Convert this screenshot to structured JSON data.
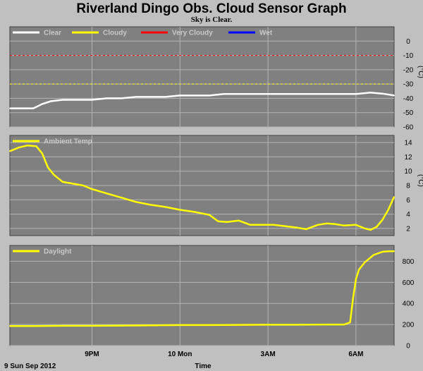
{
  "header": {
    "title": "Riverland Dingo Obs. Cloud Sensor Graph",
    "subtitle": "Sky is Clear."
  },
  "footer": {
    "date_label": "9 Sun Sep 2012",
    "x_axis_label": "Time"
  },
  "colors": {
    "page_bg": "#c0c0c0",
    "plot_bg": "#808080",
    "grid": "#b4b4b4",
    "clear": "#ffffff",
    "cloudy": "#ffff00",
    "very_cloudy": "#ff0000",
    "wet": "#0000ff"
  },
  "x_ticks": [
    {
      "hour": 21,
      "label": "9PM"
    },
    {
      "hour": 24,
      "label": "10 Mon"
    },
    {
      "hour": 27,
      "label": "3AM"
    },
    {
      "hour": 30,
      "label": "6AM"
    }
  ],
  "chart_data": [
    {
      "type": "line",
      "panel": "sky",
      "xunit": "hours since 00:00 Sun 9 Sep 2012",
      "xlim": [
        18.2,
        31.3
      ],
      "ylim": [
        -60,
        10
      ],
      "yticks": [
        0,
        -10,
        -20,
        -30,
        -40,
        -50,
        -60
      ],
      "ylabel": "(°C)",
      "legend": [
        "Clear",
        "Cloudy",
        "Very Cloudy",
        "Wet"
      ],
      "thresholds": [
        {
          "name": "Cloudy",
          "value": -30,
          "color": "#ffff00"
        },
        {
          "name": "Very Cloudy",
          "value": -10,
          "color": "#ff0000"
        }
      ],
      "series": [
        {
          "name": "Clear",
          "color": "#ffffff",
          "x": [
            18.2,
            18.6,
            19.0,
            19.3,
            19.6,
            20.0,
            20.5,
            21.0,
            21.5,
            22.0,
            22.5,
            23.0,
            23.5,
            24.0,
            24.5,
            25.0,
            25.5,
            26.0,
            26.5,
            27.0,
            27.5,
            28.0,
            28.5,
            29.0,
            29.5,
            30.0,
            30.5,
            31.0,
            31.3
          ],
          "y": [
            -47,
            -47,
            -47,
            -44,
            -42,
            -41,
            -41,
            -41,
            -40,
            -40,
            -39,
            -39,
            -39,
            -38,
            -38,
            -38,
            -37,
            -37,
            -37,
            -37,
            -37,
            -37,
            -37,
            -37,
            -37,
            -37,
            -36,
            -37,
            -38
          ]
        }
      ]
    },
    {
      "type": "line",
      "panel": "ambient",
      "xlim": [
        18.2,
        31.3
      ],
      "ylim": [
        1,
        15
      ],
      "yticks": [
        2,
        4,
        6,
        8,
        10,
        12,
        14
      ],
      "ylabel": "(°C)",
      "legend": [
        "Ambient Temp"
      ],
      "series": [
        {
          "name": "Ambient Temp",
          "color": "#ffff00",
          "x": [
            18.2,
            18.5,
            18.8,
            19.1,
            19.3,
            19.5,
            19.7,
            20.0,
            20.3,
            20.7,
            21.0,
            21.5,
            22.0,
            22.5,
            23.0,
            23.5,
            24.0,
            24.5,
            25.0,
            25.3,
            25.6,
            26.0,
            26.4,
            26.8,
            27.2,
            27.6,
            28.0,
            28.3,
            28.7,
            29.0,
            29.3,
            29.6,
            30.0,
            30.3,
            30.5,
            30.7,
            30.9,
            31.1,
            31.3
          ],
          "y": [
            12.8,
            13.3,
            13.6,
            13.5,
            12.5,
            10.5,
            9.5,
            8.5,
            8.3,
            8.0,
            7.5,
            6.9,
            6.3,
            5.7,
            5.3,
            5.0,
            4.6,
            4.3,
            3.9,
            3.0,
            2.9,
            3.1,
            2.5,
            2.5,
            2.5,
            2.3,
            2.1,
            1.9,
            2.5,
            2.7,
            2.6,
            2.4,
            2.5,
            2.0,
            1.8,
            2.2,
            3.2,
            4.6,
            6.4
          ]
        }
      ]
    },
    {
      "type": "line",
      "panel": "daylight",
      "xlim": [
        18.2,
        31.3
      ],
      "ylim": [
        0,
        950
      ],
      "yticks": [
        0,
        200,
        400,
        600,
        800
      ],
      "legend": [
        "Daylight"
      ],
      "series": [
        {
          "name": "Daylight",
          "color": "#ffff00",
          "x": [
            18.2,
            19.0,
            20.0,
            21.0,
            22.0,
            23.0,
            24.0,
            25.0,
            26.0,
            27.0,
            28.0,
            29.0,
            29.6,
            29.8,
            29.9,
            30.0,
            30.1,
            30.3,
            30.6,
            30.9,
            31.1,
            31.3
          ],
          "y": [
            185,
            185,
            188,
            188,
            190,
            192,
            195,
            195,
            197,
            198,
            198,
            200,
            200,
            220,
            450,
            630,
            720,
            790,
            860,
            890,
            895,
            895
          ]
        }
      ]
    }
  ]
}
